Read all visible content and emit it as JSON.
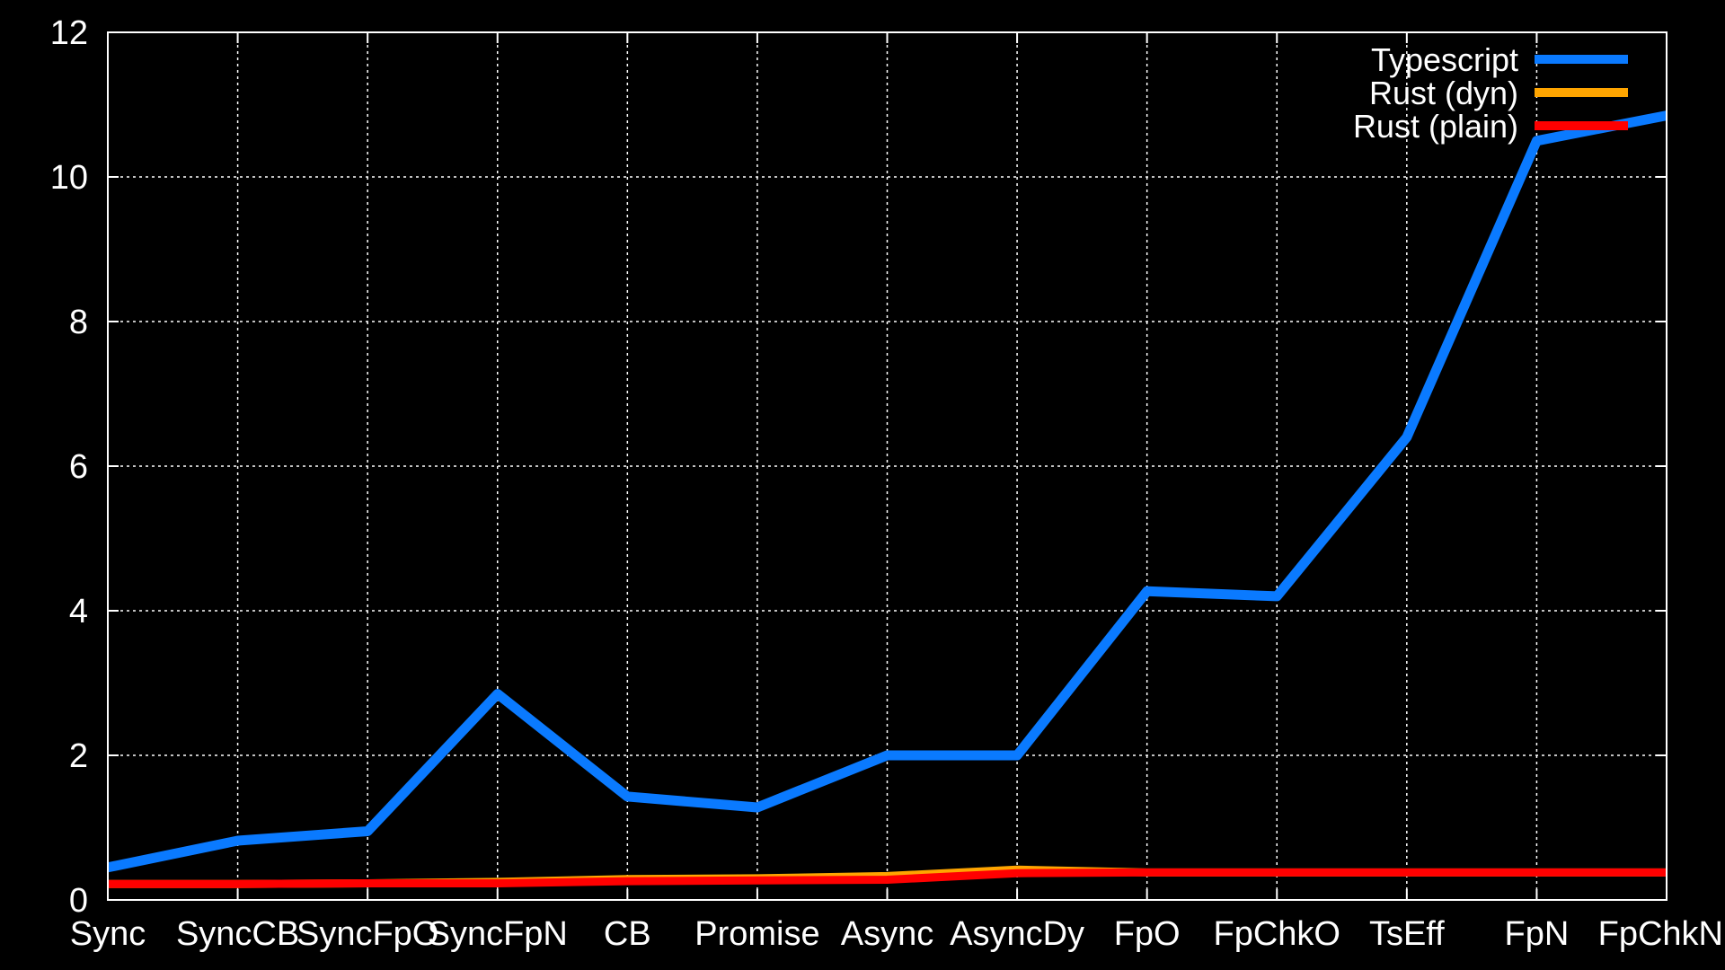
{
  "chart_data": {
    "type": "line",
    "title": "",
    "xlabel": "",
    "ylabel": "",
    "categories": [
      "Sync",
      "SyncCB",
      "SyncFpO",
      "SyncFpN",
      "CB",
      "Promise",
      "Async",
      "AsyncDy",
      "FpO",
      "FpChkO",
      "TsEff",
      "FpN",
      "FpChkN"
    ],
    "ylim": [
      0,
      12
    ],
    "yticks": [
      0,
      2,
      4,
      6,
      8,
      10,
      12
    ],
    "grid": true,
    "legend_position": "top-right",
    "series": [
      {
        "name": "Typescript",
        "color": "#0a7aff",
        "values": [
          0.45,
          0.82,
          0.95,
          2.85,
          1.43,
          1.28,
          2.0,
          2.0,
          4.27,
          4.2,
          6.4,
          10.5,
          10.85
        ]
      },
      {
        "name": "Rust (dyn)",
        "color": "#ffa500",
        "values": [
          0.22,
          0.22,
          0.23,
          0.25,
          0.29,
          0.3,
          0.33,
          0.42,
          0.38,
          0.38,
          0.38,
          0.38,
          0.38
        ]
      },
      {
        "name": "Rust (plain)",
        "color": "#ff0000",
        "values": [
          0.22,
          0.22,
          0.23,
          0.23,
          0.26,
          0.27,
          0.28,
          0.37,
          0.38,
          0.38,
          0.38,
          0.38,
          0.38
        ]
      }
    ]
  }
}
